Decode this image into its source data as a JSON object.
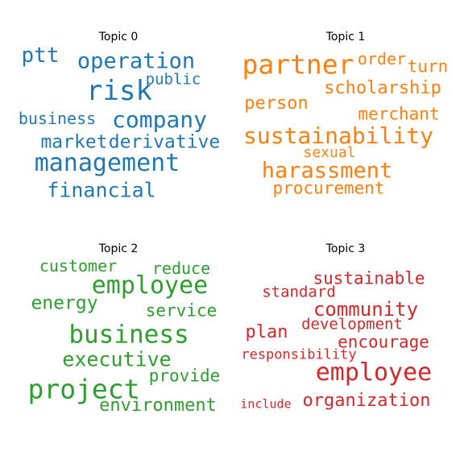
{
  "chart_data": {
    "type": "wordcloud",
    "panels": [
      {
        "title": "Topic 0",
        "color": "#1f77b4",
        "words": [
          "risk",
          "management",
          "company",
          "operation",
          "financial",
          "ptt",
          "derivative",
          "market",
          "business",
          "public"
        ]
      },
      {
        "title": "Topic 1",
        "color": "#ff7f0e",
        "words": [
          "partner",
          "sustainability",
          "harassment",
          "scholarship",
          "person",
          "merchant",
          "procurement",
          "order",
          "turn",
          "sexual"
        ]
      },
      {
        "title": "Topic 2",
        "color": "#2ca02c",
        "words": [
          "project",
          "business",
          "employee",
          "executive",
          "energy",
          "environment",
          "service",
          "provide",
          "customer",
          "reduce"
        ]
      },
      {
        "title": "Topic 3",
        "color": "#d62728",
        "words": [
          "employee",
          "community",
          "organization",
          "sustainable",
          "encourage",
          "development",
          "plan",
          "standard",
          "responsibility",
          "include"
        ]
      }
    ]
  }
}
